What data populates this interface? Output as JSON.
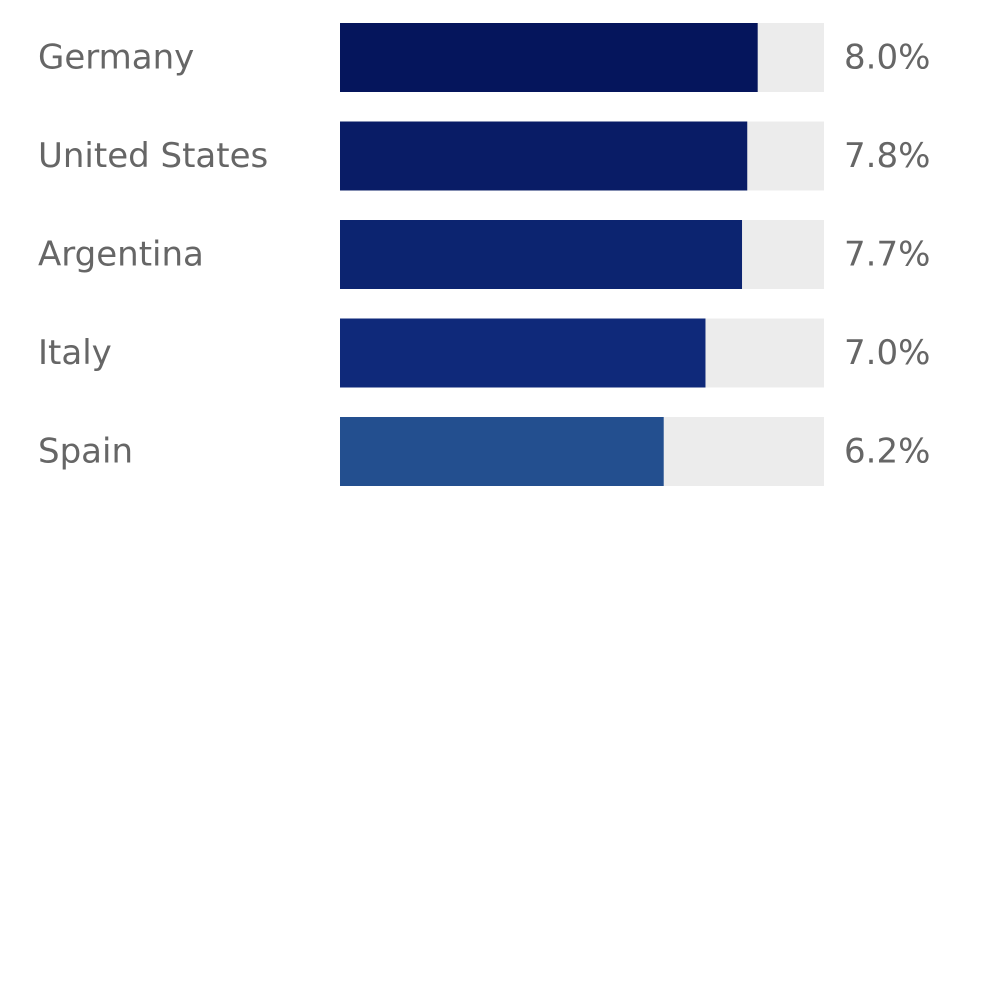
{
  "chart_data": {
    "type": "bar",
    "orientation": "horizontal",
    "categories": [
      "Germany",
      "United States",
      "Argentina",
      "Italy",
      "Spain"
    ],
    "values": [
      8.0,
      7.8,
      7.7,
      7.0,
      6.2
    ],
    "value_labels": [
      "8.0%",
      "7.8%",
      "7.7%",
      "7.0%",
      "6.2%"
    ],
    "unit": "%",
    "xlim": [
      0,
      9.27
    ],
    "grid": false,
    "legend": "none"
  },
  "colors": {
    "bars": [
      "#05155c",
      "#091c66",
      "#0c2470",
      "#0f297a",
      "#234f8f"
    ],
    "track": "#ececec",
    "text": "#666666",
    "background": "#ffffff"
  }
}
